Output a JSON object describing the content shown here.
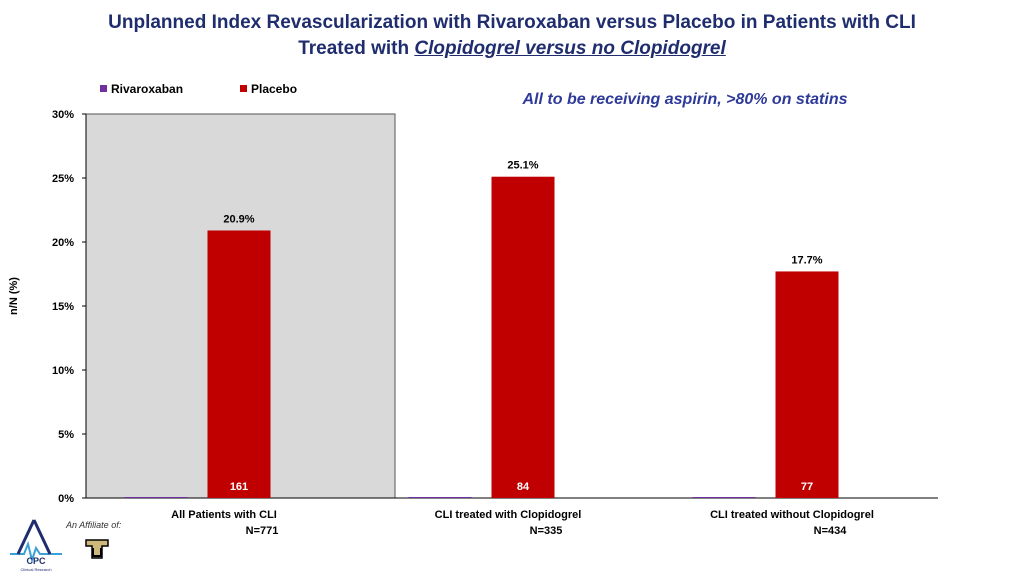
{
  "header": {
    "title_line1": "Unplanned Index Revascularization with Rivaroxaban versus Placebo in Patients with CLI",
    "title_line2_prefix": "Treated with ",
    "title_line2_emphasis": "Clopidogrel versus no Clopidogrel"
  },
  "note": "All to be receiving aspirin, >80% on statins",
  "affiliate_text": "An Affiliate of:",
  "logo_text": {
    "name": "CPC",
    "tagline": "Clinical Research"
  },
  "colors": {
    "rivaroxaban": "#7030a0",
    "placebo": "#c00000",
    "title": "#1f2d6e",
    "highlight_panel": "#d9d9d9"
  },
  "chart_data": {
    "type": "bar",
    "ylabel": "n/N (%)",
    "ylim": [
      0,
      30
    ],
    "yticks": [
      "0%",
      "5%",
      "10%",
      "15%",
      "20%",
      "25%",
      "30%"
    ],
    "ytick_values": [
      0,
      5,
      10,
      15,
      20,
      25,
      30
    ],
    "categories": [
      "All Patients with CLI",
      "CLI treated with Clopidogrel",
      "CLI treated without Clopidogrel"
    ],
    "category_n": [
      "N=771",
      "N=335",
      "N=434"
    ],
    "legend_position": "top-left",
    "highlighted_category": "All Patients with CLI",
    "series": [
      {
        "name": "Rivaroxaban",
        "values": [
          0,
          0,
          0
        ],
        "value_labels": [
          "",
          "",
          ""
        ],
        "count_labels": [
          "",
          "",
          ""
        ]
      },
      {
        "name": "Placebo",
        "values": [
          20.9,
          25.1,
          17.7
        ],
        "value_labels": [
          "20.9%",
          "25.1%",
          "17.7%"
        ],
        "count_labels": [
          "161",
          "84",
          "77"
        ]
      }
    ]
  }
}
